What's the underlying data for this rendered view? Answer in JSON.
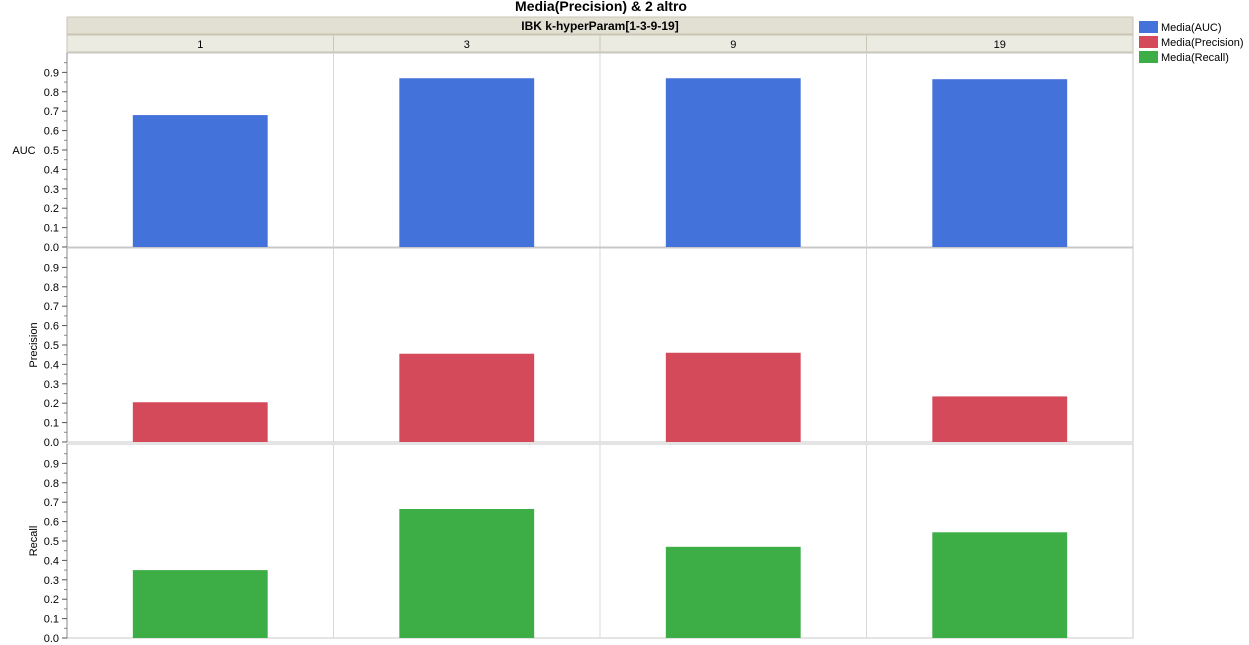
{
  "chart_data": {
    "type": "bar",
    "title": "Media(Precision) & 2 altro",
    "group_title": "IBK k-hyperParam[1-3-9-19]",
    "categories": [
      "1",
      "3",
      "9",
      "19"
    ],
    "series": [
      {
        "name": "Media(AUC)",
        "ylabel": "AUC",
        "color": "#4472db",
        "values": [
          0.68,
          0.87,
          0.87,
          0.865
        ]
      },
      {
        "name": "Media(Precision)",
        "ylabel": "Precision",
        "color": "#d44a5a",
        "values": [
          0.205,
          0.455,
          0.46,
          0.235
        ]
      },
      {
        "name": "Media(Recall)",
        "ylabel": "Recall",
        "color": "#3dae46",
        "values": [
          0.35,
          0.665,
          0.47,
          0.545
        ]
      }
    ],
    "yticks": [
      "0.0",
      "0.1",
      "0.2",
      "0.3",
      "0.4",
      "0.5",
      "0.6",
      "0.7",
      "0.8",
      "0.9"
    ],
    "ylim": [
      0,
      1.0
    ],
    "grid": false,
    "legend_position": "right"
  }
}
